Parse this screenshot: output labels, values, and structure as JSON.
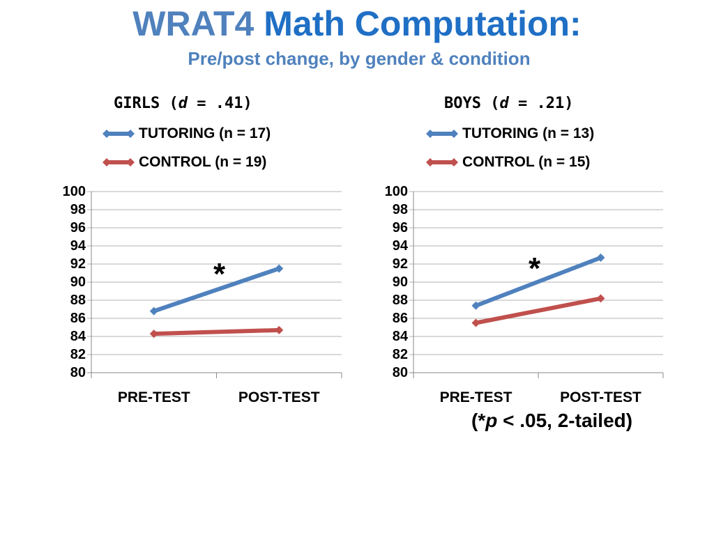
{
  "title": {
    "part1": "WRAT4",
    "part2": " Math Computation:"
  },
  "subtitle": "Pre/post change, by gender & condition",
  "colors": {
    "tutoring": "#4F81BD",
    "control": "#C0504D",
    "grid": "#B3B3B3"
  },
  "chart_data": [
    {
      "type": "line",
      "title": {
        "prefix": "GIRLS (",
        "italic": "d",
        "suffix": " = .41)"
      },
      "categories": [
        "PRE-TEST",
        "POST-TEST"
      ],
      "series": [
        {
          "name": "TUTORING (n = 17)",
          "values": [
            86.8,
            91.5
          ]
        },
        {
          "name": "CONTROL (n = 19)",
          "values": [
            84.3,
            84.7
          ]
        }
      ],
      "ylim": [
        80,
        100
      ],
      "yticks": [
        "80",
        "82",
        "84",
        "86",
        "88",
        "90",
        "92",
        "94",
        "96",
        "98",
        "100"
      ],
      "annotation": "*",
      "grid": true,
      "legend": "top"
    },
    {
      "type": "line",
      "title": {
        "prefix": "BOYS (",
        "italic": "d",
        "suffix": " = .21)"
      },
      "categories": [
        "PRE-TEST",
        "POST-TEST"
      ],
      "series": [
        {
          "name": "TUTORING (n = 13)",
          "values": [
            87.4,
            92.7
          ]
        },
        {
          "name": "CONTROL (n = 15)",
          "values": [
            85.5,
            88.2
          ]
        }
      ],
      "ylim": [
        80,
        100
      ],
      "yticks": [
        "80",
        "82",
        "84",
        "86",
        "88",
        "90",
        "92",
        "94",
        "96",
        "98",
        "100"
      ],
      "annotation": "*",
      "grid": true,
      "legend": "top"
    }
  ],
  "footnote": {
    "open": "(*",
    "italic": "p",
    "rest": " < .05, 2-tailed)"
  }
}
